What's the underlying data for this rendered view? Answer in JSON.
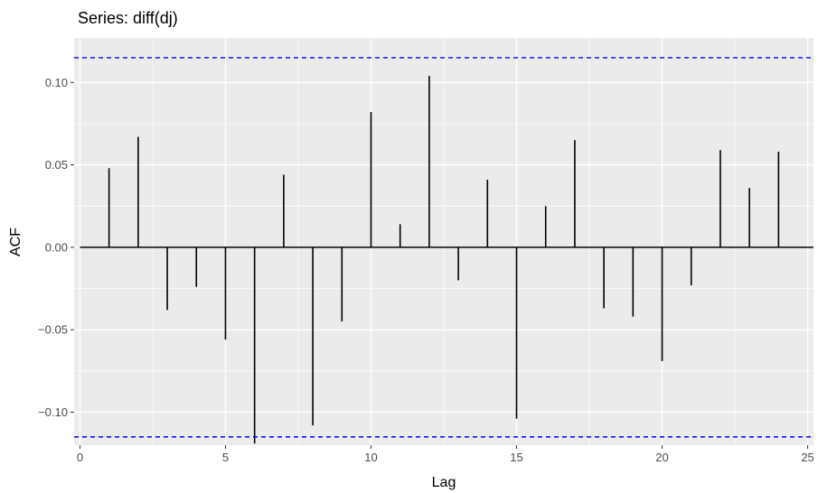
{
  "chart_data": {
    "type": "bar",
    "title": "Series: diff(dj)",
    "xlabel": "Lag",
    "ylabel": "ACF",
    "xlim": [
      -0.2,
      25.2
    ],
    "ylim": [
      -0.12,
      0.127
    ],
    "x_ticks": [
      0,
      5,
      10,
      15,
      20,
      25
    ],
    "x_tick_labels": [
      "0",
      "5",
      "10",
      "15",
      "20",
      "25"
    ],
    "y_ticks": [
      -0.1,
      -0.05,
      0.0,
      0.05,
      0.1
    ],
    "y_tick_labels": [
      "−0.10",
      "−0.05",
      "0.00",
      "0.05",
      "0.10"
    ],
    "lags": [
      1,
      2,
      3,
      4,
      5,
      6,
      7,
      8,
      9,
      10,
      11,
      12,
      13,
      14,
      15,
      16,
      17,
      18,
      19,
      20,
      21,
      22,
      23,
      24
    ],
    "values": [
      0.048,
      0.067,
      -0.038,
      -0.024,
      -0.056,
      -0.119,
      0.044,
      -0.108,
      -0.045,
      0.082,
      0.014,
      0.104,
      -0.02,
      0.041,
      -0.104,
      0.025,
      0.065,
      -0.037,
      -0.042,
      -0.069,
      -0.023,
      0.059,
      0.036,
      0.058
    ],
    "confidence_bounds": [
      0.115,
      -0.115
    ],
    "grid": true,
    "colors": {
      "panel": "#ebebeb",
      "grid": "#ffffff",
      "bar": "#000000",
      "bound": "#0000ff"
    }
  }
}
